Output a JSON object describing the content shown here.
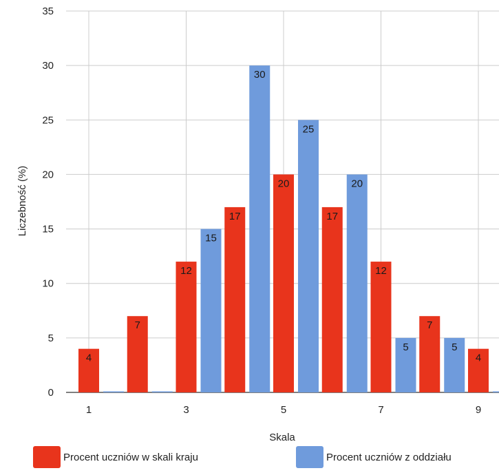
{
  "chart_data": {
    "type": "bar",
    "x": [
      1,
      2,
      3,
      4,
      5,
      6,
      7,
      8,
      9
    ],
    "series": [
      {
        "name": "Procent uczniów w skali kraju",
        "color": "#e8341c",
        "values": [
          4,
          7,
          12,
          17,
          20,
          17,
          12,
          7,
          4
        ]
      },
      {
        "name": "Procent uczniów z oddziału",
        "color": "#6f9bdc",
        "values": [
          0,
          0,
          15,
          30,
          25,
          20,
          5,
          5,
          0
        ]
      }
    ],
    "xticks": [
      "1",
      "3",
      "5",
      "7",
      "9"
    ],
    "xtick_values": [
      1,
      3,
      5,
      7,
      9
    ],
    "yticks": [
      "0",
      "5",
      "10",
      "15",
      "20",
      "25",
      "30",
      "35"
    ],
    "ylim": [
      0,
      35
    ],
    "xlabel": "Skala",
    "ylabel": "Liczebność (%)",
    "grid": true,
    "legend_position": "bottom"
  }
}
